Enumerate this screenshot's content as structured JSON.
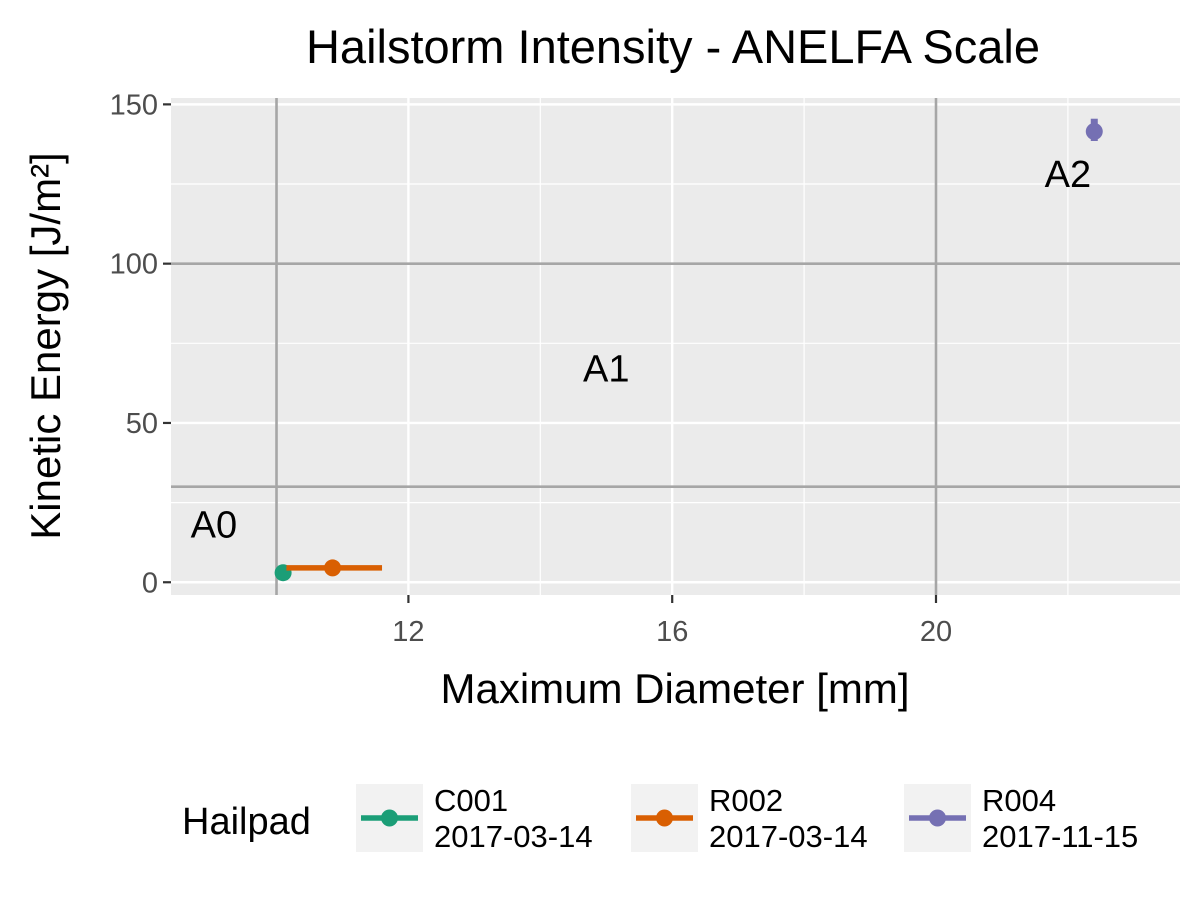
{
  "chart_data": {
    "type": "scatter",
    "title": "Hailstorm Intensity - ANELFA Scale",
    "xlabel": "Maximum Diameter [mm]",
    "ylabel": "Kinetic Energy [J/m²]",
    "xlim": [
      8.4,
      23.7
    ],
    "ylim": [
      -4,
      152
    ],
    "x_ticks": [
      12,
      16,
      20
    ],
    "y_ticks": [
      0,
      50,
      100,
      150
    ],
    "grid": true,
    "zone_lines": {
      "x": [
        10,
        20
      ],
      "y": [
        30,
        100
      ]
    },
    "zone_labels": [
      {
        "text": "A0",
        "x": 9.05,
        "y": 14
      },
      {
        "text": "A1",
        "x": 15.0,
        "y": 63
      },
      {
        "text": "A2",
        "x": 22.0,
        "y": 124
      }
    ],
    "legend": {
      "title": "Hailpad",
      "position": "bottom"
    },
    "series": [
      {
        "name": "C001\n2017-03-14",
        "color": "#1B9E77",
        "x": 10.1,
        "y": 3.0,
        "x_range": null,
        "y_range": null
      },
      {
        "name": "R002\n2017-03-14",
        "color": "#D95F02",
        "x": 10.85,
        "y": 4.5,
        "x_range": [
          10.15,
          11.6
        ],
        "y_range": null
      },
      {
        "name": "R004\n2017-11-15",
        "color": "#7570B3",
        "x": 22.4,
        "y": 141.5,
        "x_range": null,
        "y_range": [
          138.5,
          145.5
        ]
      }
    ]
  }
}
